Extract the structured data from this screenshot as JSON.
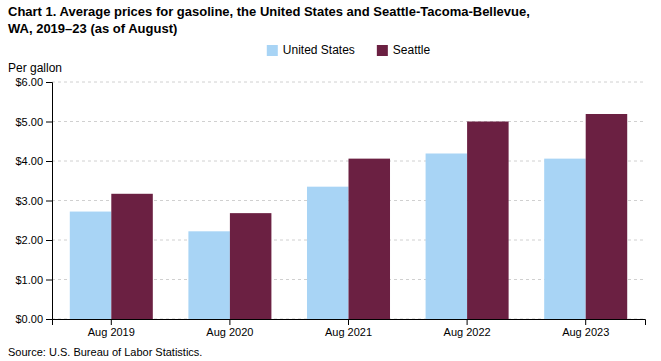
{
  "chart_data": {
    "type": "bar",
    "title": "Chart 1. Average prices for gasoline, the United States and Seattle-Tacoma-Bellevue,\nWA, 2019–23 (as of August)",
    "y_label": "Per gallon",
    "source": "Source: U.S. Bureau of Labor Statistics.",
    "categories": [
      "Aug 2019",
      "Aug 2020",
      "Aug 2021",
      "Aug 2022",
      "Aug 2023"
    ],
    "series": [
      {
        "name": "United States",
        "color": "#a8d4f5",
        "values": [
          2.72,
          2.22,
          3.35,
          4.19,
          4.06
        ]
      },
      {
        "name": "Seattle",
        "color": "#6b2042",
        "values": [
          3.17,
          2.68,
          4.06,
          5.0,
          5.19
        ]
      }
    ],
    "ylim": [
      0,
      6.0
    ],
    "yticks": [
      {
        "value": 0.0,
        "label": "$0.00"
      },
      {
        "value": 1.0,
        "label": "$1.00"
      },
      {
        "value": 2.0,
        "label": "$2.00"
      },
      {
        "value": 3.0,
        "label": "$3.00"
      },
      {
        "value": 4.0,
        "label": "$4.00"
      },
      {
        "value": 5.0,
        "label": "$5.00"
      },
      {
        "value": 6.0,
        "label": "$6.00"
      }
    ],
    "grid": true,
    "legend": "top"
  }
}
